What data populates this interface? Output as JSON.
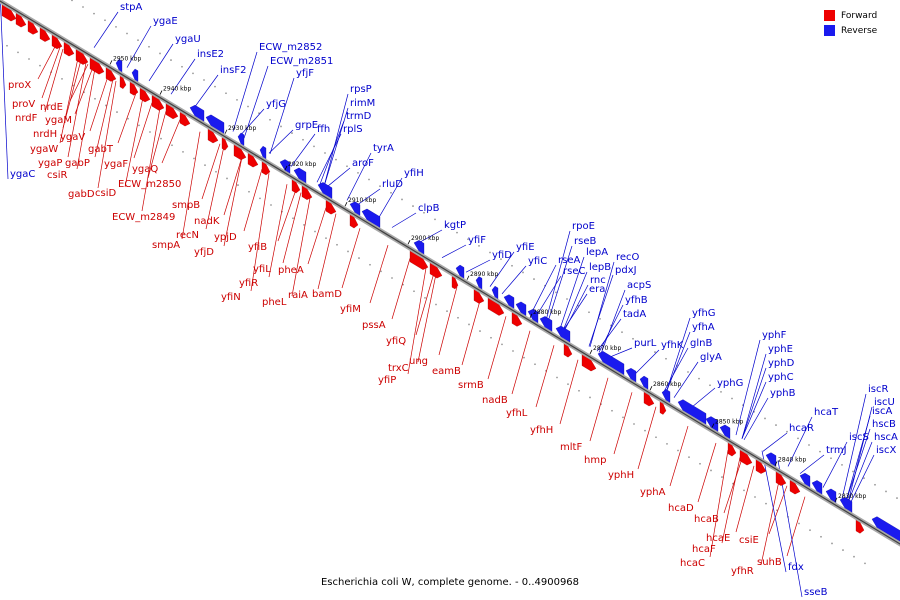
{
  "caption": "Escherichia coli W, complete genome. - 0..4900968",
  "legend": [
    {
      "label": "Forward",
      "color": "#ee0000"
    },
    {
      "label": "Reverse",
      "color": "#1a1aee"
    }
  ],
  "ticks": [
    "2950 kbp",
    "2940 kbp",
    "2930 kbp",
    "2920 kbp",
    "2910 kbp",
    "2900 kbp",
    "2890 kbp",
    "2880 kbp",
    "2870 kbp",
    "2860 kbp",
    "2850 kbp",
    "2840 kbp",
    "2830 kbp"
  ],
  "forward_genes": [
    "proX",
    "proV",
    "nrdE",
    "nrdF",
    "ygaM",
    "nrdH",
    "ygaV",
    "ygaW",
    "gabT",
    "ygaP",
    "gabP",
    "csiR",
    "ygaF",
    "gabD",
    "csiD",
    "ygaQ",
    "ECW_m2850",
    "smpB",
    "ECW_m2849",
    "nadK",
    "recN",
    "smpA",
    "ypjD",
    "yfjD",
    "yfiB",
    "yfiL",
    "yfiR",
    "yfiN",
    "pheA",
    "pheL",
    "raiA",
    "bamD",
    "yfiM",
    "pssA",
    "yfiQ",
    "ung",
    "trxC",
    "yfiP",
    "eamB",
    "srmB",
    "nadB",
    "yfhL",
    "yfhH",
    "mltF",
    "hmp",
    "yphH",
    "yphA",
    "hcaD",
    "hcaB",
    "hcaE",
    "hcaF",
    "hcaC",
    "csiE",
    "suhB",
    "yfhR"
  ],
  "reverse_genes": [
    "ygaC",
    "stpA",
    "ygaE",
    "ygaU",
    "insE2",
    "insF2",
    "ECW_m2852",
    "ECW_m2851",
    "yfjF",
    "yfjG",
    "rpsP",
    "rimM",
    "trmD",
    "rplS",
    "grpE",
    "ffh",
    "tyrA",
    "aroF",
    "yfiH",
    "rluD",
    "clpB",
    "kgtP",
    "yfiF",
    "yfiD",
    "yfiE",
    "yfiC",
    "rpoE",
    "rseB",
    "rseA",
    "lepA",
    "rseC",
    "lepB",
    "recO",
    "rnc",
    "pdxJ",
    "era",
    "acpS",
    "yfhB",
    "tadA",
    "purL",
    "yfhG",
    "yfhA",
    "yfhK",
    "glnB",
    "glyA",
    "yphF",
    "yphE",
    "yphD",
    "yphG",
    "yphC",
    "yphB",
    "hcaT",
    "hcaR",
    "trmJ",
    "iscR",
    "iscU",
    "iscA",
    "hscB",
    "iscS",
    "hscA",
    "iscX",
    "fdx",
    "sseB"
  ]
}
